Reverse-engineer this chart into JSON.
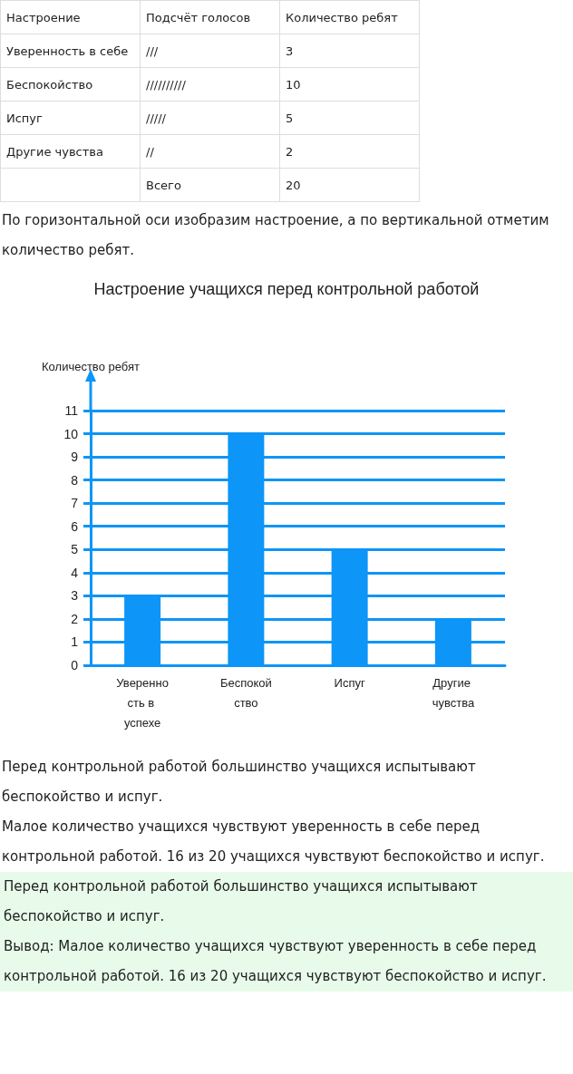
{
  "chart_data": [
    {
      "type": "other",
      "categories": [
        "Настроение",
        "Подсчёт голосов",
        "Количество ребят"
      ],
      "annotations": [
        "Уверенность в себе",
        "///",
        "3",
        "Беспокойство",
        "//////////",
        "10",
        "Испуг",
        "/////",
        "5",
        "Другие чувства",
        "//",
        "2",
        null,
        "Всего",
        "20"
      ]
    },
    {
      "type": "other",
      "annotations": [
        "По горизонтальной оси изобразим настроение, а по вертикальной отметим количество ребят."
      ]
    },
    {
      "type": "bar",
      "title": "Настроение учащихся перед контрольной работой",
      "ylabel": "Количество ребят",
      "categories": [
        "Уверенность в успехе",
        "Беспокойство",
        "Испуг",
        "Другие чувства"
      ],
      "values": [
        3,
        10,
        5,
        2
      ],
      "color": "#0d95f7",
      "ylim": [
        0,
        11
      ],
      "yticks": [
        0,
        1,
        2,
        3,
        4,
        5,
        6,
        7,
        8,
        9,
        10,
        11
      ],
      "grid": "y"
    },
    {
      "type": "other",
      "annotations": [
        "Перед контрольной работой большинство учащихся испытывают беспокойство и испуг.",
        "Малое количество учащихся чувствуют уверенность в себе перед контрольной работой. 16 из 20 учащихся чувствуют беспокойство и испуг."
      ]
    },
    {
      "type": "other",
      "annotations": [
        "Перед контрольной работой большинство учащихся испытывают беспокойство и испуг.",
        "Вывод: Малое количество учащихся чувствуют уверенность в себе перед контрольной работой. 16 из 20 учащихся чувствуют беспокойство и испуг."
      ]
    }
  ]
}
